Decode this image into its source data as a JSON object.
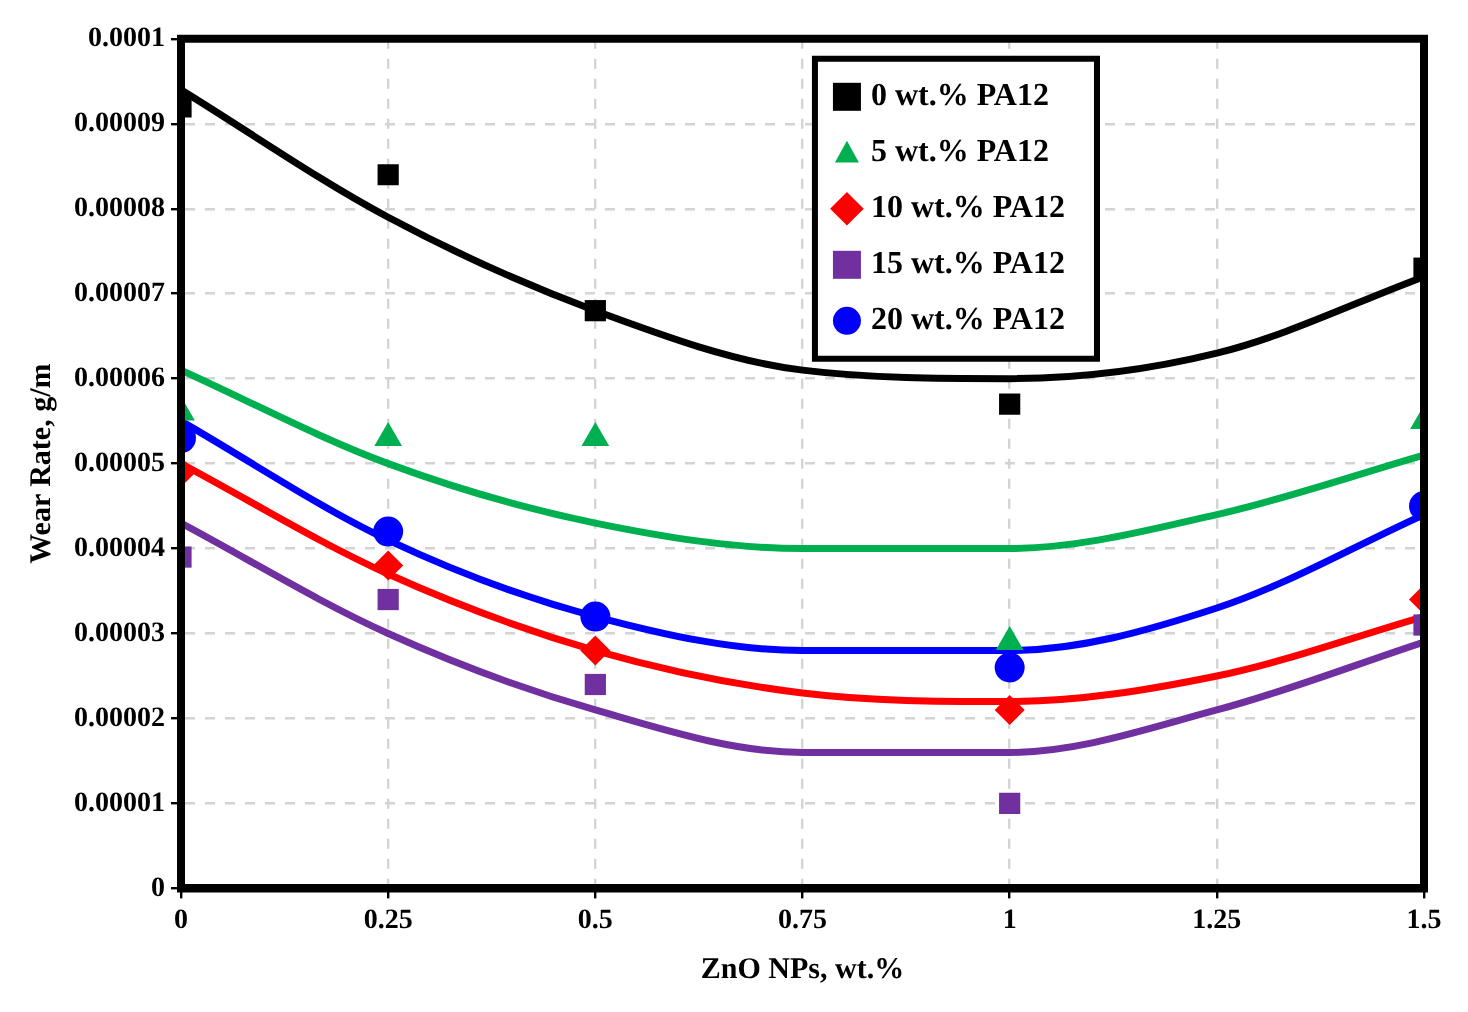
{
  "chart_data": {
    "type": "scatter",
    "xlabel": "ZnO NPs, wt.%",
    "ylabel": "Wear Rate, g/m",
    "x": [
      0,
      0.25,
      0.5,
      1,
      1.5
    ],
    "xlim": [
      0,
      1.5
    ],
    "xticks": [
      0,
      0.25,
      0.5,
      0.75,
      1,
      1.25,
      1.5
    ],
    "ylim": [
      0,
      0.0001
    ],
    "yticks": [
      0,
      {
        "value": 1e-05,
        "label": "0.00001"
      },
      {
        "value": 2e-05,
        "label": "0.00002"
      },
      {
        "value": 3e-05,
        "label": "0.00003"
      },
      {
        "value": 4e-05,
        "label": "0.00004"
      },
      {
        "value": 5e-05,
        "label": "0.00005"
      },
      {
        "value": 6e-05,
        "label": "0.00006"
      },
      {
        "value": 7e-05,
        "label": "0.00007"
      },
      {
        "value": 8e-05,
        "label": "0.00008"
      },
      {
        "value": 9e-05,
        "label": "0.00009"
      },
      0.0001
    ],
    "grid": true,
    "legend": "top right",
    "series": [
      {
        "name": "0 wt.% PA12",
        "color": "#000000",
        "marker": "square",
        "values": [
          9.2e-05,
          8.4e-05,
          6.8e-05,
          5.7e-05,
          7.3e-05
        ]
      },
      {
        "name": "5 wt.% PA12",
        "color": "#00b050",
        "marker": "triangle",
        "values": [
          5.6e-05,
          5.3e-05,
          5.3e-05,
          2.9e-05,
          5.5e-05
        ]
      },
      {
        "name": "10 wt.% PA12",
        "color": "#ff0000",
        "marker": "diamond",
        "values": [
          4.9e-05,
          3.8e-05,
          2.8e-05,
          2.1e-05,
          3.4e-05
        ]
      },
      {
        "name": "15 wt.% PA12",
        "color": "#7030a0",
        "marker": "square",
        "values": [
          3.9e-05,
          3.4e-05,
          2.4e-05,
          1e-05,
          3.1e-05
        ]
      },
      {
        "name": "20 wt.% PA12",
        "color": "#0000ff",
        "marker": "circle",
        "values": [
          5.3e-05,
          4.2e-05,
          3.2e-05,
          2.6e-05,
          4.5e-05
        ]
      },
      {
        "type": "line",
        "color": "#000000",
        "marker": "none",
        "x": [
          0,
          0.25,
          0.5,
          0.75,
          1,
          1.25,
          1.5
        ],
        "values": [
          9.4e-05,
          7.9e-05,
          6.8e-05,
          6.1e-05,
          6e-05,
          6.3e-05,
          7.2e-05
        ]
      },
      {
        "type": "line",
        "color": "#00b050",
        "marker": "none",
        "x": [
          0,
          0.25,
          0.5,
          0.75,
          1,
          1.25,
          1.5
        ],
        "values": [
          6.1e-05,
          5e-05,
          4.3e-05,
          4e-05,
          4e-05,
          4.4e-05,
          5.1e-05
        ]
      },
      {
        "type": "line",
        "color": "#ff0000",
        "marker": "none",
        "x": [
          0,
          0.25,
          0.5,
          0.75,
          1,
          1.25,
          1.5
        ],
        "values": [
          5e-05,
          3.7e-05,
          2.8e-05,
          2.3e-05,
          2.2e-05,
          2.5e-05,
          3.2e-05
        ]
      },
      {
        "type": "line",
        "color": "#7030a0",
        "marker": "none",
        "x": [
          0,
          0.25,
          0.5,
          0.75,
          1,
          1.25,
          1.5
        ],
        "values": [
          4.3e-05,
          3e-05,
          2.1e-05,
          1.6e-05,
          1.6e-05,
          2.1e-05,
          2.9e-05
        ]
      },
      {
        "type": "line",
        "color": "#0000ff",
        "marker": "none",
        "x": [
          0,
          0.25,
          0.5,
          0.75,
          1,
          1.25,
          1.5
        ],
        "values": [
          5.5e-05,
          4.1e-05,
          3.2e-05,
          2.8e-05,
          2.8e-05,
          3.3e-05,
          4.4e-05
        ]
      }
    ]
  }
}
